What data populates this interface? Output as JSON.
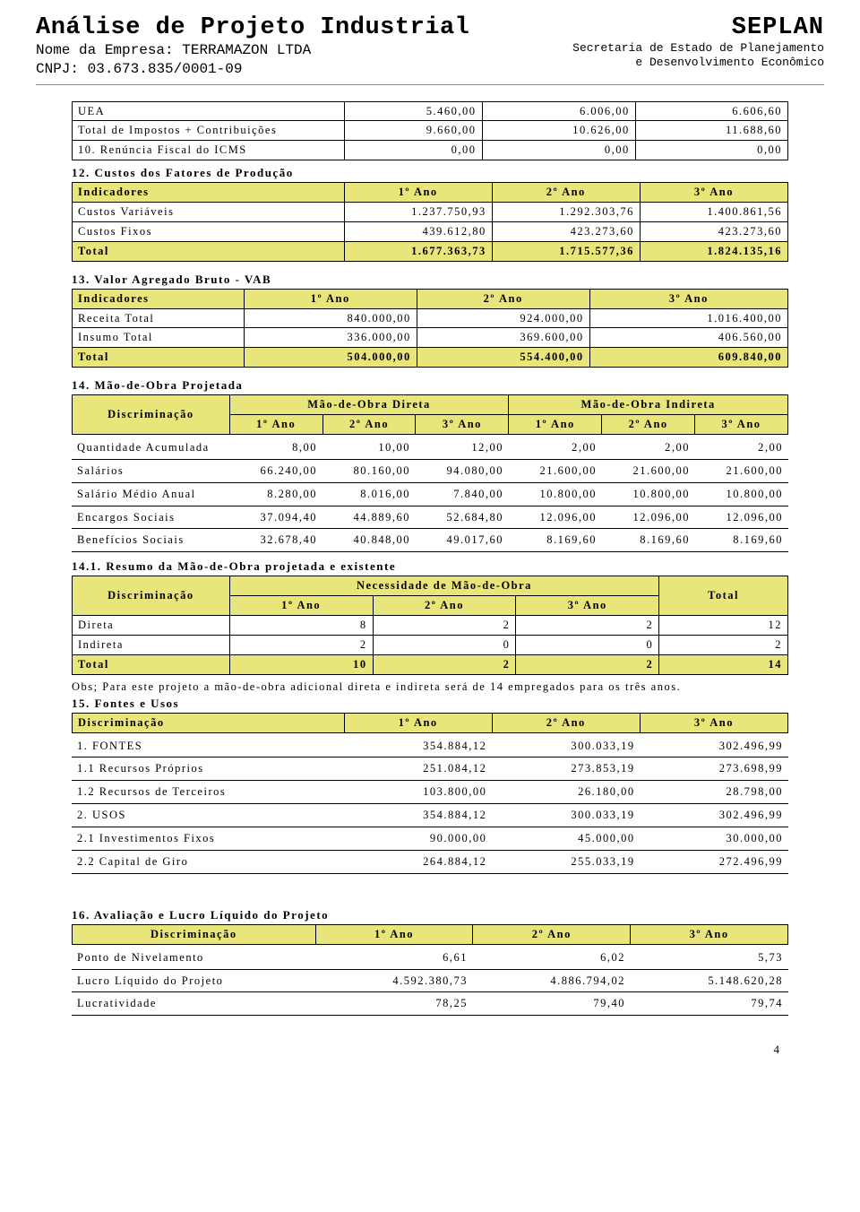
{
  "header": {
    "title": "Análise de Projeto Industrial",
    "company_label": "Nome da Empresa:",
    "company_name": "TERRAMAZON LTDA",
    "cnpj_label": "CNPJ:",
    "cnpj": "03.673.835/0001-09",
    "seplan": "SEPLAN",
    "seplan_sub1": "Secretaria de Estado de Planejamento",
    "seplan_sub2": "e Desenvolvimento Econômico"
  },
  "t11": {
    "rows": [
      [
        "UEA",
        "5.460,00",
        "6.006,00",
        "6.606,60"
      ],
      [
        "Total de Impostos + Contribuições",
        "9.660,00",
        "10.626,00",
        "11.688,60"
      ],
      [
        "10. Renúncia Fiscal do ICMS",
        "0,00",
        "0,00",
        "0,00"
      ]
    ]
  },
  "t12": {
    "title": "12. Custos dos Fatores de Produção",
    "head": [
      "Indicadores",
      "1º Ano",
      "2º Ano",
      "3º Ano"
    ],
    "rows": [
      [
        "Custos Variáveis",
        "1.237.750,93",
        "1.292.303,76",
        "1.400.861,56"
      ],
      [
        "Custos Fixos",
        "439.612,80",
        "423.273,60",
        "423.273,60"
      ]
    ],
    "total": [
      "Total",
      "1.677.363,73",
      "1.715.577,36",
      "1.824.135,16"
    ]
  },
  "t13": {
    "title": "13. Valor Agregado Bruto - VAB",
    "head": [
      "Indicadores",
      "1º Ano",
      "2º Ano",
      "3º Ano"
    ],
    "rows": [
      [
        "Receita Total",
        "840.000,00",
        "924.000,00",
        "1.016.400,00"
      ],
      [
        "Insumo Total",
        "336.000,00",
        "369.600,00",
        "406.560,00"
      ]
    ],
    "total": [
      "Total",
      "504.000,00",
      "554.400,00",
      "609.840,00"
    ]
  },
  "t14": {
    "title": "14. Mão-de-Obra Projetada",
    "top_head": [
      "Discriminação",
      "Mão-de-Obra Direta",
      "Mão-de-Obra Indireta"
    ],
    "sub_head": [
      "1º Ano",
      "2º Ano",
      "3º Ano",
      "1º Ano",
      "2º Ano",
      "3º Ano"
    ],
    "rows": [
      [
        "Quantidade Acumulada",
        "8,00",
        "10,00",
        "12,00",
        "2,00",
        "2,00",
        "2,00"
      ],
      [
        "Salários",
        "66.240,00",
        "80.160,00",
        "94.080,00",
        "21.600,00",
        "21.600,00",
        "21.600,00"
      ],
      [
        "Salário Médio Anual",
        "8.280,00",
        "8.016,00",
        "7.840,00",
        "10.800,00",
        "10.800,00",
        "10.800,00"
      ],
      [
        "Encargos Sociais",
        "37.094,40",
        "44.889,60",
        "52.684,80",
        "12.096,00",
        "12.096,00",
        "12.096,00"
      ],
      [
        "Benefícios Sociais",
        "32.678,40",
        "40.848,00",
        "49.017,60",
        "8.169,60",
        "8.169,60",
        "8.169,60"
      ]
    ]
  },
  "t141": {
    "title": "14.1. Resumo da Mão-de-Obra projetada e existente",
    "top_head": [
      "Discriminação",
      "Necessidade de Mão-de-Obra",
      "Total"
    ],
    "sub_head": [
      "1º Ano",
      "2º Ano",
      "3º Ano"
    ],
    "rows": [
      [
        "Direta",
        "8",
        "2",
        "2",
        "12"
      ],
      [
        "Indireta",
        "2",
        "0",
        "0",
        "2"
      ]
    ],
    "total": [
      "Total",
      "10",
      "2",
      "2",
      "14"
    ]
  },
  "note14": "Obs; Para este projeto a mão-de-obra adicional direta e indireta será de 14 empregados para os três anos.",
  "t15": {
    "title": "15. Fontes e Usos",
    "head": [
      "Discriminação",
      "1º Ano",
      "2º Ano",
      "3º Ano"
    ],
    "rows": [
      [
        "1. FONTES",
        "354.884,12",
        "300.033,19",
        "302.496,99"
      ],
      [
        "1.1 Recursos Próprios",
        "251.084,12",
        "273.853,19",
        "273.698,99"
      ],
      [
        "1.2 Recursos de Terceiros",
        "103.800,00",
        "26.180,00",
        "28.798,00"
      ],
      [
        "2. USOS",
        "354.884,12",
        "300.033,19",
        "302.496,99"
      ],
      [
        "2.1 Investimentos Fixos",
        "90.000,00",
        "45.000,00",
        "30.000,00"
      ],
      [
        "2.2 Capital de Giro",
        "264.884,12",
        "255.033,19",
        "272.496,99"
      ]
    ]
  },
  "t16": {
    "title": "16. Avaliação e Lucro Líquido do Projeto",
    "head": [
      "Discriminação",
      "1º Ano",
      "2º Ano",
      "3º Ano"
    ],
    "rows": [
      [
        "Ponto de Nivelamento",
        "6,61",
        "6,02",
        "5,73"
      ],
      [
        "Lucro Líquido do Projeto",
        "4.592.380,73",
        "4.886.794,02",
        "5.148.620,28"
      ],
      [
        "Lucratividade",
        "78,25",
        "79,40",
        "79,74"
      ]
    ]
  },
  "page_number": "4",
  "colors": {
    "header_yellow": "#e8e67a",
    "border": "#000000",
    "text": "#000000",
    "bg": "#ffffff"
  }
}
